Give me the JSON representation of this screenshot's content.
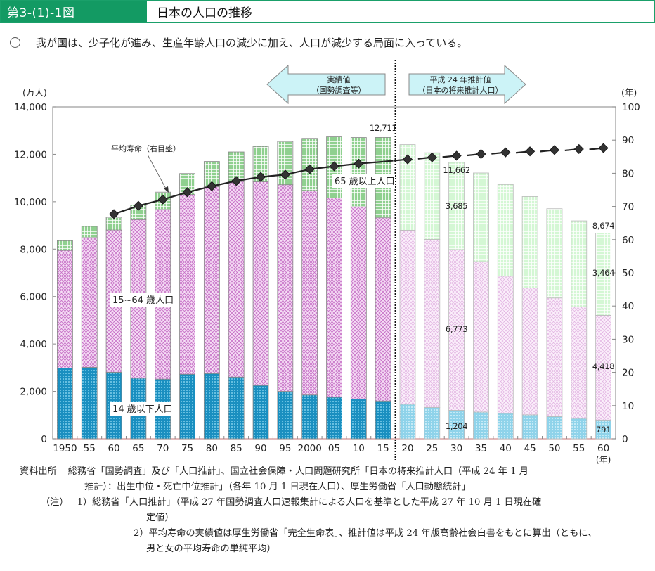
{
  "header": {
    "figure_number": "第3-(1)-1図",
    "title": "日本の人口の推移"
  },
  "summary": {
    "bullet_icon": "circle-icon",
    "text": "我が国は、少子化が進み、生産年齢人口の減少に加え、人口が減少する局面に入っている。"
  },
  "chart_data": {
    "type": "bar",
    "subtype": "stacked-bar-with-line",
    "title": "日本の人口の推移",
    "categories": [
      "1950",
      "55",
      "60",
      "65",
      "70",
      "75",
      "80",
      "85",
      "90",
      "95",
      "2000",
      "05",
      "10",
      "15",
      "20",
      "25",
      "30",
      "35",
      "40",
      "45",
      "50",
      "55",
      "60"
    ],
    "xlabel": "(年)",
    "ylabel": "(万人)",
    "ylabel_right": "(年)",
    "ylim": [
      0,
      14000
    ],
    "yticks": [
      0,
      2000,
      4000,
      6000,
      8000,
      10000,
      12000,
      14000
    ],
    "ytick_labels": [
      "0",
      "2,000",
      "4,000",
      "6,000",
      "8,000",
      "10,000",
      "12,000",
      "14,000"
    ],
    "ylim_right": [
      0,
      100
    ],
    "yticks_right": [
      0,
      10,
      20,
      30,
      40,
      50,
      60,
      70,
      80,
      90,
      100
    ],
    "grid": false,
    "projection_start_index": 14,
    "series": [
      {
        "name": "14歳以下人口",
        "label": "14 歳以下人口",
        "color": "#1a8fc0",
        "projected_color": "#8fd3ea",
        "values": [
          2979,
          3012,
          2807,
          2553,
          2515,
          2722,
          2751,
          2603,
          2249,
          2001,
          1847,
          1752,
          1680,
          1595,
          1457,
          1324,
          1204,
          1129,
          1073,
          1012,
          939,
          861,
          791
        ]
      },
      {
        "name": "15~64歳人口",
        "label": "15~64 歳人口",
        "color": "#e3a6e3",
        "projected_color": "#f1d3f1",
        "values": [
          4966,
          5473,
          6000,
          6693,
          7157,
          7581,
          7883,
          8251,
          8590,
          8716,
          8622,
          8409,
          8103,
          7728,
          7341,
          7085,
          6773,
          6343,
          5787,
          5353,
          5001,
          4706,
          4418
        ]
      },
      {
        "name": "65歳以上人口",
        "label": "65 歳以上人口",
        "color": "#8fd08f",
        "projected_color": "#d4f7d4",
        "values": [
          411,
          475,
          535,
          618,
          733,
          887,
          1065,
          1247,
          1493,
          1826,
          2204,
          2576,
          2925,
          3388,
          3612,
          3657,
          3685,
          3741,
          3868,
          3856,
          3768,
          3626,
          3464
        ]
      },
      {
        "name": "平均寿命(右目盛)",
        "label": "平均寿命（右目盛）",
        "type": "line",
        "axis": "right",
        "color": "#222222",
        "values": [
          null,
          null,
          67.7,
          70.2,
          72.1,
          74.3,
          76.1,
          77.7,
          78.9,
          79.6,
          81.2,
          82.1,
          82.9,
          83.5,
          84.2,
          84.8,
          85.3,
          85.8,
          86.3,
          86.6,
          87.0,
          87.3,
          87.6
        ]
      }
    ],
    "annotations": {
      "total_2015": "12,711",
      "total_2030": "11,662",
      "old_2030": "3,685",
      "work_2030": "6,773",
      "young_2030": "1,204",
      "total_2060": "8,674",
      "old_2060": "3,464",
      "work_2060": "4,418",
      "young_2060": "791",
      "arrow_left_line1": "実績値",
      "arrow_left_line2": "（国勢調査等）",
      "arrow_right_line1": "平成 24 年推計値",
      "arrow_right_line2": "（日本の将来推計人口）",
      "arrow_color": "#ccf3f7"
    }
  },
  "notes": {
    "source_label": "資料出所",
    "source_line1": "総務省「国勢調査」及び「人口推計」、国立社会保障・人口問題研究所「日本の将来推計人口（平成 24 年 1 月",
    "source_line2": "推計）：出生中位・死亡中位推計」（各年 10 月 1 日現在人口）、厚生労働省「人口動態統計」",
    "note_label": "（注）",
    "note1_line1": "1）総務省「人口推計」（平成 27 年国勢調査人口速報集計による人口を基準とした平成 27 年 10 月 1 日現在確",
    "note1_line2": "定値）",
    "note2_line1": "2）平均寿命の実績値は厚生労働省「完全生命表」、推計値は平成 24 年版高齢社会白書をもとに算出（ともに、",
    "note2_line2": "男と女の平均寿命の単純平均）"
  }
}
